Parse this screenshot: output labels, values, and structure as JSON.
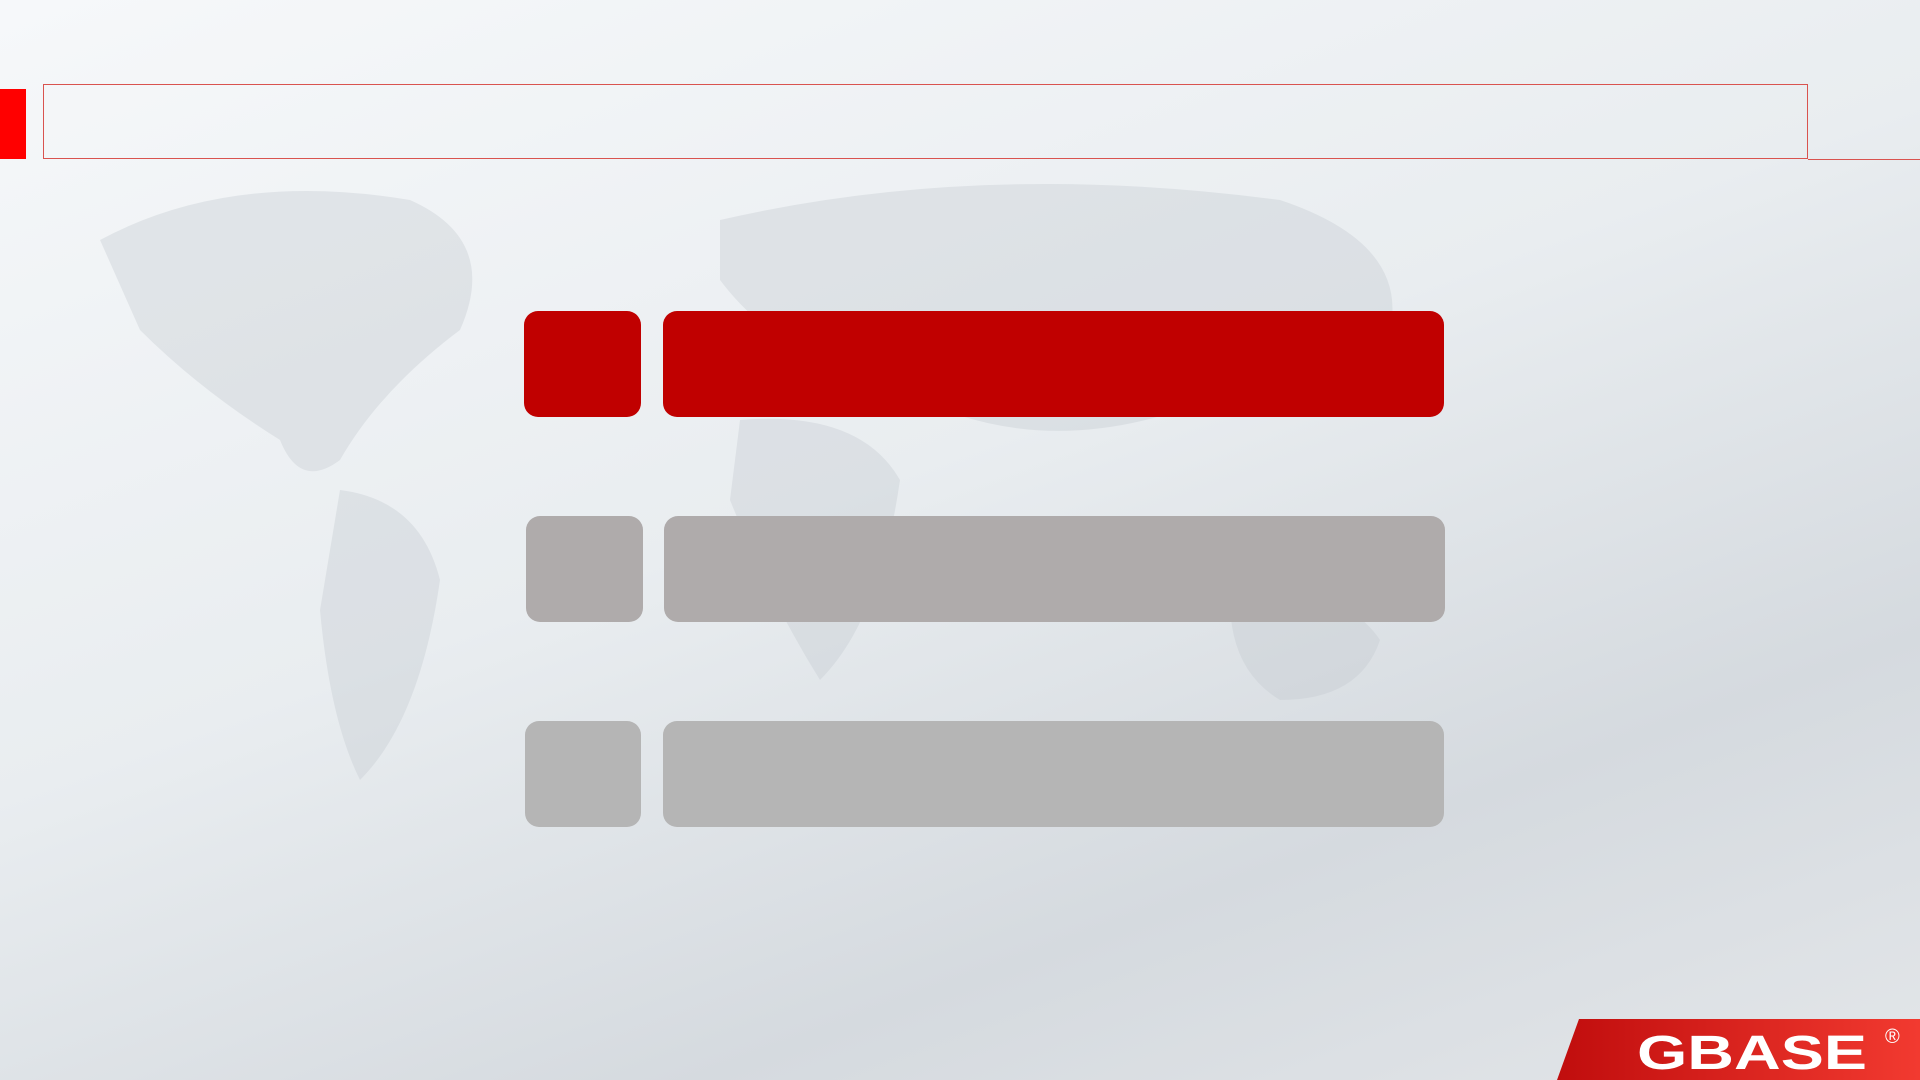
{
  "header": {
    "title": ""
  },
  "menu": {
    "items": [
      {
        "state": "active",
        "color": "#c00000"
      },
      {
        "state": "inactive",
        "color": "#afabab"
      },
      {
        "state": "inactive",
        "color": "#b5b5b5"
      }
    ]
  },
  "logo": {
    "text": "GBASE",
    "mark": "®",
    "color": "#e02020"
  }
}
